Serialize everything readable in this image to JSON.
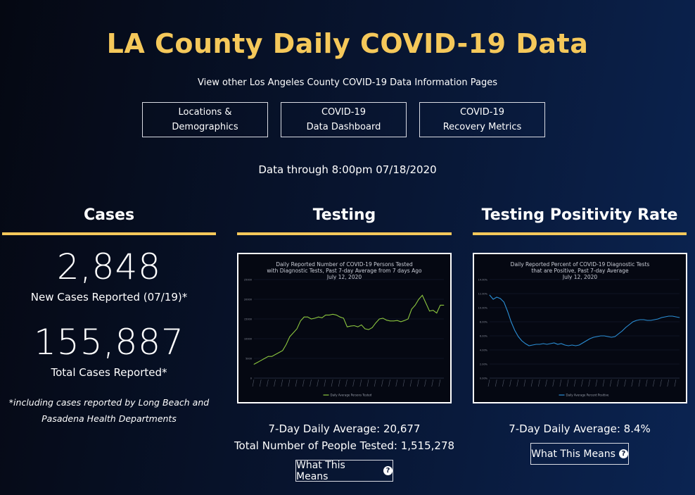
{
  "page": {
    "title": "LA County Daily COVID-19 Data",
    "subtitle": "View other Los Angeles County COVID-19 Data Information Pages",
    "nav": [
      {
        "label": "Locations &\nDemographics"
      },
      {
        "label": "COVID-19\nData Dashboard"
      },
      {
        "label": "COVID-19\nRecovery Metrics"
      }
    ],
    "data_through": "Data through 8:00pm 07/18/2020",
    "accent_color": "#f5c85a"
  },
  "cases": {
    "heading": "Cases",
    "new_cases": "2,848",
    "new_cases_label": "New Cases Reported (07/19)*",
    "total_cases": "155,887",
    "total_cases_label": "Total Cases Reported*",
    "footnote": "*including cases reported by Long Beach and Pasadena Health Departments"
  },
  "testing": {
    "heading": "Testing",
    "avg_text": "7-Day Daily Average: 20,677",
    "total_text": "Total Number of People Tested: 1,515,278",
    "button_label": "What This Means",
    "button_icon": "question-circle-icon"
  },
  "positivity": {
    "heading": "Testing Positivity Rate",
    "avg_text": "7-Day Daily Average: 8.4%",
    "button_label": "What This Means",
    "button_icon": "question-circle-icon"
  },
  "chart_data": [
    {
      "type": "line",
      "title": "Daily Reported Number of COVID-19 Persons Tested\nwith Diagnostic Tests, Past 7-day Average from 7 days Ago\nJuly 12, 2020",
      "color": "#8cc63f",
      "ylim": [
        0,
        25000
      ],
      "yticks": [
        0,
        5000,
        10000,
        15000,
        20000,
        25000
      ],
      "ytick_labels": [
        "0",
        "5000",
        "10000",
        "15000",
        "20000",
        "25000"
      ],
      "legend": "Daily Average Persons Tested",
      "values": [
        3500,
        4000,
        4500,
        5000,
        5500,
        5500,
        6000,
        6500,
        7000,
        8500,
        10500,
        11500,
        12500,
        14500,
        15500,
        15500,
        15000,
        15200,
        15500,
        15300,
        16000,
        16000,
        16200,
        16000,
        15500,
        15200,
        13000,
        13200,
        13300,
        13000,
        13500,
        12500,
        12300,
        12800,
        14000,
        15000,
        15200,
        14700,
        14500,
        14500,
        14600,
        14300,
        14600,
        15000,
        17500,
        18500,
        20000,
        21000,
        19000,
        17000,
        17200,
        16500,
        18500,
        18500
      ]
    },
    {
      "type": "line",
      "title": "Daily Reported Percent of COVID-19 Diagnostic Tests\nthat are Positive, Past 7-day Average\nJuly 12, 2020",
      "color": "#2b8fd6",
      "ylim": [
        0,
        14
      ],
      "yticks": [
        0,
        2,
        4,
        6,
        8,
        10,
        12,
        14
      ],
      "ytick_labels": [
        "0.00%",
        "2.00%",
        "4.00%",
        "6.00%",
        "8.00%",
        "10.00%",
        "12.00%",
        "14.00%"
      ],
      "legend": "Daily Average Percent Positive",
      "values": [
        11.8,
        11.2,
        11.5,
        11.3,
        10.8,
        9.5,
        8.0,
        6.8,
        5.9,
        5.3,
        4.9,
        4.6,
        4.7,
        4.8,
        4.8,
        4.9,
        4.8,
        4.9,
        5.0,
        4.8,
        4.9,
        4.7,
        4.6,
        4.7,
        4.6,
        4.7,
        5.0,
        5.3,
        5.6,
        5.8,
        5.9,
        6.0,
        6.0,
        5.9,
        5.8,
        5.9,
        6.3,
        6.7,
        7.2,
        7.6,
        8.0,
        8.2,
        8.3,
        8.3,
        8.2,
        8.2,
        8.3,
        8.4,
        8.6,
        8.7,
        8.8,
        8.8,
        8.7,
        8.6
      ]
    }
  ]
}
